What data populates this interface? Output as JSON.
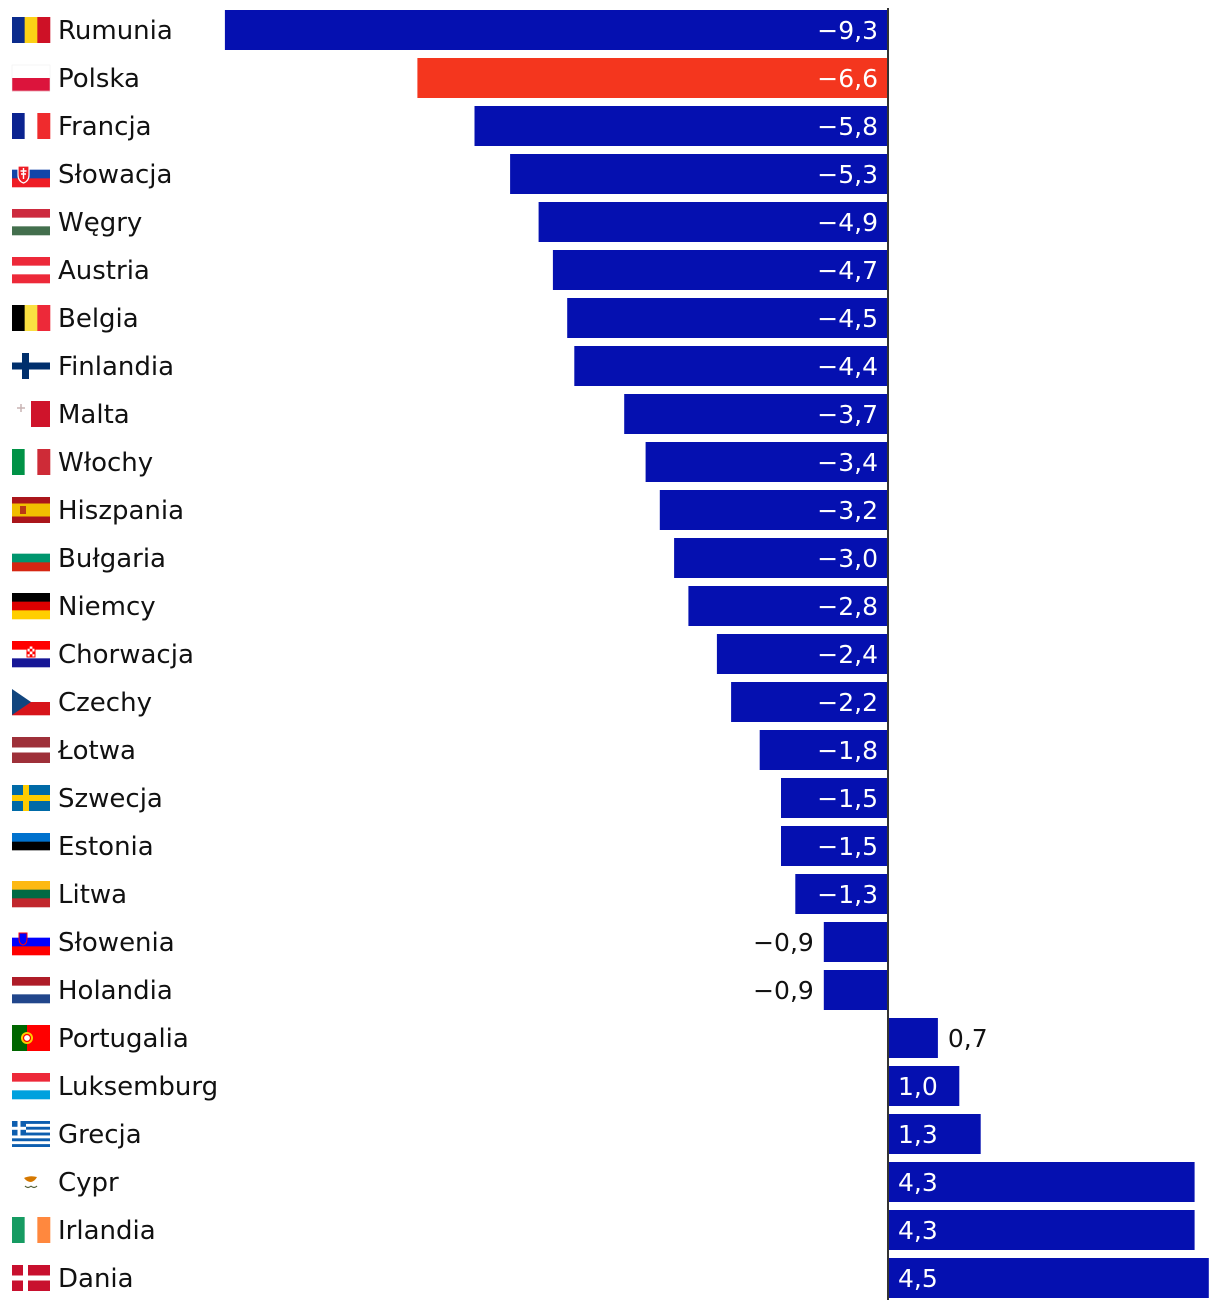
{
  "chart_data": {
    "type": "bar",
    "orientation": "horizontal",
    "title": "",
    "xlabel": "",
    "ylabel": "",
    "xlim": [
      -9.3,
      4.5
    ],
    "grid": false,
    "legend": "none",
    "categories": [
      "Rumunia",
      "Polska",
      "Francja",
      "Słowacja",
      "Węgry",
      "Austria",
      "Belgia",
      "Finlandia",
      "Malta",
      "Włochy",
      "Hiszpania",
      "Bułgaria",
      "Niemcy",
      "Chorwacja",
      "Czechy",
      "Łotwa",
      "Szwecja",
      "Estonia",
      "Litwa",
      "Słowenia",
      "Holandia",
      "Portugalia",
      "Luksemburg",
      "Grecja",
      "Cypr",
      "Irlandia",
      "Dania"
    ],
    "values": [
      -9.3,
      -6.6,
      -5.8,
      -5.3,
      -4.9,
      -4.7,
      -4.5,
      -4.4,
      -3.7,
      -3.4,
      -3.2,
      -3.0,
      -2.8,
      -2.4,
      -2.2,
      -1.8,
      -1.5,
      -1.5,
      -1.3,
      -0.9,
      -0.9,
      0.7,
      1.0,
      1.3,
      4.3,
      4.3,
      4.5
    ],
    "value_labels": [
      "−9,3",
      "−6,6",
      "−5,8",
      "−5,3",
      "−4,9",
      "−4,7",
      "−4,5",
      "−4,4",
      "−3,7",
      "−3,4",
      "−3,2",
      "−3,0",
      "−2,8",
      "−2,4",
      "−2,2",
      "−1,8",
      "−1,5",
      "−1,5",
      "−1,3",
      "−0,9",
      "−0,9",
      "0,7",
      "1,0",
      "1,3",
      "4,3",
      "4,3",
      "4,5"
    ],
    "highlight_category": "Polska",
    "colors": {
      "bar": "#0510b0",
      "highlight": "#f4361e",
      "axis": "#333333",
      "label_inside": "#ffffff",
      "label_outside": "#111111"
    },
    "flags": [
      "flag-ro",
      "flag-pl",
      "flag-fr",
      "flag-sk",
      "flag-hu",
      "flag-at",
      "flag-be",
      "flag-fi",
      "flag-mt",
      "flag-it",
      "flag-es",
      "flag-bg",
      "flag-de",
      "flag-hr",
      "flag-cz",
      "flag-lv",
      "flag-se",
      "flag-ee",
      "flag-lt",
      "flag-si",
      "flag-nl",
      "flag-pt",
      "flag-lu",
      "flag-gr",
      "flag-cy",
      "flag-ie",
      "flag-dk"
    ]
  }
}
